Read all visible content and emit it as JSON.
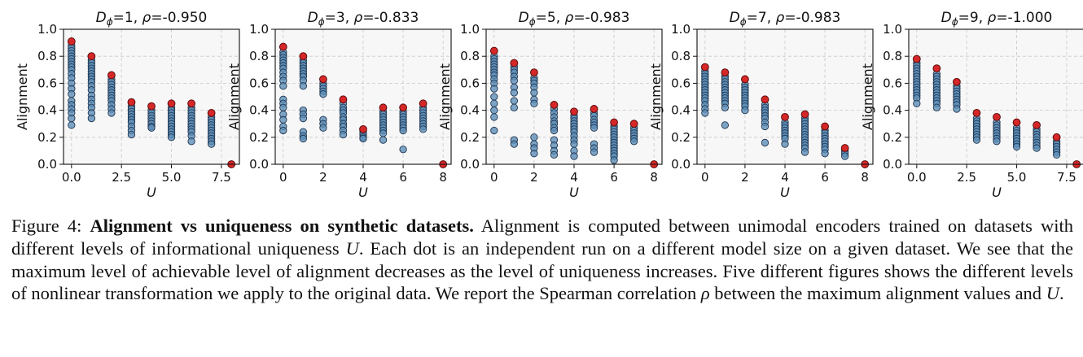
{
  "chart_data": [
    {
      "type": "scatter",
      "title": "D_ϕ=1,  ρ=-0.950",
      "title_parts": {
        "var": "D",
        "sub": "ϕ",
        "eq": "=1,  ",
        "rho_var": "ρ",
        "rho_val": "=-0.950"
      },
      "xlabel": "U",
      "ylabel": "Alignment",
      "xlim": [
        -0.4,
        8.4
      ],
      "ylim": [
        0,
        1
      ],
      "grid": true,
      "xticks": [
        "0.0",
        "2.5",
        "5.0",
        "7.5"
      ],
      "yticks": [
        "0.0",
        "0.2",
        "0.4",
        "0.6",
        "0.8",
        "1.0"
      ],
      "points": [
        {
          "x": 0,
          "ys": [
            0.88,
            0.86,
            0.84,
            0.82,
            0.8,
            0.78,
            0.76,
            0.74,
            0.72,
            0.7,
            0.67,
            0.64,
            0.6,
            0.56,
            0.52,
            0.47,
            0.44,
            0.41,
            0.38,
            0.34,
            0.29
          ]
        },
        {
          "x": 1,
          "ys": [
            0.77,
            0.75,
            0.73,
            0.71,
            0.69,
            0.67,
            0.65,
            0.63,
            0.61,
            0.58,
            0.55,
            0.51,
            0.48,
            0.45,
            0.42,
            0.38,
            0.34
          ]
        },
        {
          "x": 2,
          "ys": [
            0.63,
            0.61,
            0.59,
            0.57,
            0.55,
            0.53,
            0.51,
            0.49,
            0.47,
            0.44,
            0.41,
            0.38
          ]
        },
        {
          "x": 3,
          "ys": [
            0.43,
            0.41,
            0.39,
            0.37,
            0.35,
            0.33,
            0.31,
            0.28,
            0.25,
            0.22
          ]
        },
        {
          "x": 4,
          "ys": [
            0.4,
            0.38,
            0.36,
            0.34,
            0.32,
            0.3,
            0.28,
            0.27
          ]
        },
        {
          "x": 5,
          "ys": [
            0.42,
            0.4,
            0.38,
            0.36,
            0.34,
            0.32,
            0.3,
            0.28,
            0.26,
            0.24,
            0.22,
            0.2
          ]
        },
        {
          "x": 6,
          "ys": [
            0.42,
            0.4,
            0.38,
            0.36,
            0.34,
            0.32,
            0.3,
            0.28,
            0.26,
            0.24,
            0.21,
            0.17
          ]
        },
        {
          "x": 7,
          "ys": [
            0.35,
            0.33,
            0.31,
            0.29,
            0.27,
            0.25,
            0.23,
            0.21,
            0.19,
            0.17,
            0.15
          ]
        }
      ],
      "max_points": [
        {
          "x": 0,
          "y": 0.91
        },
        {
          "x": 1,
          "y": 0.8
        },
        {
          "x": 2,
          "y": 0.66
        },
        {
          "x": 3,
          "y": 0.46
        },
        {
          "x": 4,
          "y": 0.43
        },
        {
          "x": 5,
          "y": 0.45
        },
        {
          "x": 6,
          "y": 0.45
        },
        {
          "x": 7,
          "y": 0.38
        },
        {
          "x": 8,
          "y": 0.0
        }
      ]
    },
    {
      "type": "scatter",
      "title": "D_ϕ=3,  ρ=-0.833",
      "title_parts": {
        "var": "D",
        "sub": "ϕ",
        "eq": "=3,  ",
        "rho_var": "ρ",
        "rho_val": "=-0.833"
      },
      "xlabel": "U",
      "ylabel": "Alignment",
      "xlim": [
        -0.4,
        8.4
      ],
      "ylim": [
        0,
        1
      ],
      "grid": true,
      "xticks": [
        "0",
        "2",
        "4",
        "6",
        "8"
      ],
      "yticks": [
        "0.0",
        "0.2",
        "0.4",
        "0.6",
        "0.8",
        "1.0"
      ],
      "points": [
        {
          "x": 0,
          "ys": [
            0.83,
            0.81,
            0.79,
            0.77,
            0.75,
            0.73,
            0.71,
            0.68,
            0.65,
            0.62,
            0.58,
            0.48,
            0.45,
            0.42,
            0.37,
            0.33,
            0.28,
            0.25
          ]
        },
        {
          "x": 1,
          "ys": [
            0.77,
            0.75,
            0.73,
            0.71,
            0.69,
            0.67,
            0.65,
            0.62,
            0.58,
            0.4,
            0.37,
            0.34,
            0.24,
            0.21,
            0.19
          ]
        },
        {
          "x": 2,
          "ys": [
            0.6,
            0.58,
            0.56,
            0.54,
            0.52,
            0.33,
            0.3,
            0.27
          ]
        },
        {
          "x": 3,
          "ys": [
            0.45,
            0.42,
            0.4,
            0.38,
            0.35,
            0.33,
            0.3,
            0.28,
            0.25,
            0.22
          ]
        },
        {
          "x": 4,
          "ys": [
            0.24,
            0.22,
            0.2,
            0.19
          ]
        },
        {
          "x": 5,
          "ys": [
            0.39,
            0.37,
            0.35,
            0.33,
            0.31,
            0.29,
            0.27,
            0.25,
            0.23,
            0.18
          ]
        },
        {
          "x": 6,
          "ys": [
            0.39,
            0.37,
            0.35,
            0.33,
            0.31,
            0.29,
            0.27,
            0.25,
            0.11
          ]
        },
        {
          "x": 7,
          "ys": [
            0.42,
            0.4,
            0.38,
            0.36,
            0.34,
            0.32,
            0.3,
            0.28,
            0.26
          ]
        }
      ],
      "max_points": [
        {
          "x": 0,
          "y": 0.87
        },
        {
          "x": 1,
          "y": 0.8
        },
        {
          "x": 2,
          "y": 0.63
        },
        {
          "x": 3,
          "y": 0.48
        },
        {
          "x": 4,
          "y": 0.26
        },
        {
          "x": 5,
          "y": 0.42
        },
        {
          "x": 6,
          "y": 0.42
        },
        {
          "x": 7,
          "y": 0.45
        },
        {
          "x": 8,
          "y": 0.0
        }
      ]
    },
    {
      "type": "scatter",
      "title": "D_ϕ=5,  ρ=-0.983",
      "title_parts": {
        "var": "D",
        "sub": "ϕ",
        "eq": "=5,  ",
        "rho_var": "ρ",
        "rho_val": "=-0.983"
      },
      "xlabel": "U",
      "ylabel": "Alignment",
      "xlim": [
        -0.4,
        8.4
      ],
      "ylim": [
        0,
        1
      ],
      "grid": true,
      "xticks": [
        "0",
        "2",
        "4",
        "6",
        "8"
      ],
      "yticks": [
        "0.0",
        "0.2",
        "0.4",
        "0.6",
        "0.8",
        "1.0"
      ],
      "points": [
        {
          "x": 0,
          "ys": [
            0.8,
            0.78,
            0.76,
            0.74,
            0.72,
            0.7,
            0.68,
            0.66,
            0.63,
            0.6,
            0.56,
            0.5,
            0.45,
            0.4,
            0.35,
            0.25
          ]
        },
        {
          "x": 1,
          "ys": [
            0.72,
            0.7,
            0.68,
            0.65,
            0.62,
            0.57,
            0.53,
            0.47,
            0.42,
            0.18,
            0.15
          ]
        },
        {
          "x": 2,
          "ys": [
            0.64,
            0.62,
            0.6,
            0.57,
            0.53,
            0.48,
            0.45,
            0.2,
            0.15,
            0.12,
            0.08
          ]
        },
        {
          "x": 3,
          "ys": [
            0.41,
            0.38,
            0.35,
            0.32,
            0.3,
            0.27,
            0.25,
            0.18,
            0.14,
            0.1,
            0.07
          ]
        },
        {
          "x": 4,
          "ys": [
            0.36,
            0.34,
            0.32,
            0.3,
            0.28,
            0.26,
            0.24,
            0.21,
            0.18,
            0.15,
            0.1,
            0.06
          ]
        },
        {
          "x": 5,
          "ys": [
            0.38,
            0.36,
            0.33,
            0.31,
            0.29,
            0.27,
            0.15,
            0.12,
            0.09
          ]
        },
        {
          "x": 6,
          "ys": [
            0.28,
            0.26,
            0.24,
            0.22,
            0.2,
            0.18,
            0.16,
            0.14,
            0.12,
            0.1,
            0.08,
            0.06,
            0.03
          ]
        },
        {
          "x": 7,
          "ys": [
            0.27,
            0.25,
            0.23,
            0.21,
            0.19,
            0.17
          ]
        }
      ],
      "max_points": [
        {
          "x": 0,
          "y": 0.84
        },
        {
          "x": 1,
          "y": 0.75
        },
        {
          "x": 2,
          "y": 0.68
        },
        {
          "x": 3,
          "y": 0.44
        },
        {
          "x": 4,
          "y": 0.39
        },
        {
          "x": 5,
          "y": 0.41
        },
        {
          "x": 6,
          "y": 0.31
        },
        {
          "x": 7,
          "y": 0.3
        },
        {
          "x": 8,
          "y": 0.0
        }
      ]
    },
    {
      "type": "scatter",
      "title": "D_ϕ=7,  ρ=-0.983",
      "title_parts": {
        "var": "D",
        "sub": "ϕ",
        "eq": "=7,  ",
        "rho_var": "ρ",
        "rho_val": "=-0.983"
      },
      "xlabel": "U",
      "ylabel": "Alignment",
      "xlim": [
        -0.4,
        8.4
      ],
      "ylim": [
        0,
        1
      ],
      "grid": true,
      "xticks": [
        "0",
        "2",
        "4",
        "6",
        "8"
      ],
      "yticks": [
        "0.0",
        "0.2",
        "0.4",
        "0.6",
        "0.8",
        "1.0"
      ],
      "points": [
        {
          "x": 0,
          "ys": [
            0.69,
            0.67,
            0.65,
            0.63,
            0.61,
            0.59,
            0.57,
            0.55,
            0.53,
            0.51,
            0.49,
            0.47,
            0.44,
            0.41,
            0.38
          ]
        },
        {
          "x": 1,
          "ys": [
            0.65,
            0.63,
            0.61,
            0.59,
            0.57,
            0.55,
            0.53,
            0.51,
            0.49,
            0.47,
            0.45,
            0.42,
            0.29
          ]
        },
        {
          "x": 2,
          "ys": [
            0.59,
            0.57,
            0.55,
            0.53,
            0.51,
            0.49,
            0.47,
            0.45,
            0.43,
            0.4
          ]
        },
        {
          "x": 3,
          "ys": [
            0.44,
            0.42,
            0.4,
            0.38,
            0.36,
            0.34,
            0.31,
            0.28,
            0.16
          ]
        },
        {
          "x": 4,
          "ys": [
            0.31,
            0.29,
            0.27,
            0.25,
            0.23,
            0.21,
            0.19,
            0.15
          ]
        },
        {
          "x": 5,
          "ys": [
            0.34,
            0.32,
            0.3,
            0.28,
            0.26,
            0.24,
            0.22,
            0.2,
            0.18,
            0.16,
            0.14,
            0.12,
            0.09
          ]
        },
        {
          "x": 6,
          "ys": [
            0.25,
            0.23,
            0.21,
            0.19,
            0.17,
            0.15,
            0.13,
            0.11,
            0.08
          ]
        },
        {
          "x": 7,
          "ys": [
            0.1,
            0.08,
            0.06
          ]
        }
      ],
      "max_points": [
        {
          "x": 0,
          "y": 0.72
        },
        {
          "x": 1,
          "y": 0.68
        },
        {
          "x": 2,
          "y": 0.63
        },
        {
          "x": 3,
          "y": 0.48
        },
        {
          "x": 4,
          "y": 0.35
        },
        {
          "x": 5,
          "y": 0.37
        },
        {
          "x": 6,
          "y": 0.28
        },
        {
          "x": 7,
          "y": 0.12
        },
        {
          "x": 8,
          "y": 0.0
        }
      ]
    },
    {
      "type": "scatter",
      "title": "D_ϕ=9,  ρ=-1.000",
      "title_parts": {
        "var": "D",
        "sub": "ϕ",
        "eq": "=9,  ",
        "rho_var": "ρ",
        "rho_val": "=-1.000"
      },
      "xlabel": "U",
      "ylabel": "Alignment",
      "xlim": [
        -0.4,
        8.4
      ],
      "ylim": [
        0,
        1
      ],
      "grid": true,
      "xticks": [
        "0.0",
        "2.5",
        "5.0",
        "7.5"
      ],
      "yticks": [
        "0.0",
        "0.2",
        "0.4",
        "0.6",
        "0.8",
        "1.0"
      ],
      "points": [
        {
          "x": 0,
          "ys": [
            0.75,
            0.73,
            0.71,
            0.69,
            0.67,
            0.65,
            0.63,
            0.61,
            0.59,
            0.57,
            0.55,
            0.53,
            0.51,
            0.49,
            0.45
          ]
        },
        {
          "x": 1,
          "ys": [
            0.67,
            0.65,
            0.63,
            0.61,
            0.59,
            0.57,
            0.55,
            0.53,
            0.51,
            0.49,
            0.47,
            0.45,
            0.42
          ]
        },
        {
          "x": 2,
          "ys": [
            0.58,
            0.56,
            0.54,
            0.52,
            0.5,
            0.48,
            0.46,
            0.44,
            0.41
          ]
        },
        {
          "x": 3,
          "ys": [
            0.34,
            0.32,
            0.3,
            0.28,
            0.26,
            0.24,
            0.22,
            0.2,
            0.18
          ]
        },
        {
          "x": 4,
          "ys": [
            0.31,
            0.29,
            0.27,
            0.25,
            0.23,
            0.21,
            0.19,
            0.17
          ]
        },
        {
          "x": 5,
          "ys": [
            0.27,
            0.25,
            0.23,
            0.21,
            0.19,
            0.17,
            0.15,
            0.13
          ]
        },
        {
          "x": 6,
          "ys": [
            0.26,
            0.24,
            0.22,
            0.2,
            0.18,
            0.16,
            0.14,
            0.12
          ]
        },
        {
          "x": 7,
          "ys": [
            0.17,
            0.15,
            0.13,
            0.11,
            0.09,
            0.07
          ]
        }
      ],
      "max_points": [
        {
          "x": 0,
          "y": 0.78
        },
        {
          "x": 1,
          "y": 0.71
        },
        {
          "x": 2,
          "y": 0.61
        },
        {
          "x": 3,
          "y": 0.38
        },
        {
          "x": 4,
          "y": 0.35
        },
        {
          "x": 5,
          "y": 0.31
        },
        {
          "x": 6,
          "y": 0.29
        },
        {
          "x": 7,
          "y": 0.2
        },
        {
          "x": 8,
          "y": 0.0
        }
      ]
    }
  ],
  "colors": {
    "point_fill": "#5b8db7",
    "point_stroke": "#1f3550",
    "max_fill": "#d62728",
    "max_stroke": "#5a0a0a",
    "panel_bg": "#f7f7f7",
    "grid": "#c8c8c8"
  },
  "caption": {
    "label": "Figure 4:",
    "bold": "Alignment vs uniqueness on synthetic datasets.",
    "text_1": "Alignment is computed between unimodal encoders trained on datasets with different levels of informational uniqueness",
    "var_u": "U",
    "text_2": ". Each dot is an independent run on a different model size on a given dataset. We see that the maximum level of achievable level of alignment decreases as the level of uniqueness increases. Five different figures shows the different levels of nonlinear transformation we apply to the original data. We report the Spearman correlation",
    "var_rho": "ρ",
    "text_3": "between the maximum alignment values and",
    "var_u2": "U",
    "text_4": "."
  }
}
